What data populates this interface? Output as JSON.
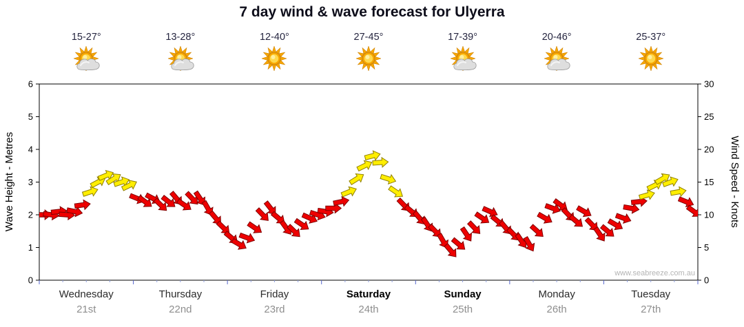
{
  "title": "7 day wind & wave forecast for Ulyerra",
  "watermark": "www.seabreeze.com.au",
  "days": [
    {
      "label": "Wednesday",
      "date": "21st",
      "temp": "15-27°",
      "icon": "sun-cloud",
      "bold": false
    },
    {
      "label": "Thursday",
      "date": "22nd",
      "temp": "13-28°",
      "icon": "sun-cloud",
      "bold": false
    },
    {
      "label": "Friday",
      "date": "23rd",
      "temp": "12-40°",
      "icon": "sun",
      "bold": false
    },
    {
      "label": "Saturday",
      "date": "24th",
      "temp": "27-45°",
      "icon": "sun",
      "bold": true
    },
    {
      "label": "Sunday",
      "date": "25th",
      "temp": "17-39°",
      "icon": "sun-cloud",
      "bold": true
    },
    {
      "label": "Monday",
      "date": "26th",
      "temp": "20-46°",
      "icon": "sun-cloud",
      "bold": false
    },
    {
      "label": "Tuesday",
      "date": "27th",
      "temp": "25-37°",
      "icon": "sun",
      "bold": false
    }
  ],
  "chart_data": {
    "type": "scatter",
    "title": "7 day wind & wave forecast for Ulyerra",
    "description": "Wind strength/direction arrows plotted against knots; arrow color indicates strength band",
    "x_axis": {
      "unit": "days",
      "categories": [
        "Wednesday",
        "Thursday",
        "Friday",
        "Saturday",
        "Sunday",
        "Monday",
        "Tuesday"
      ],
      "points_per_day": 12
    },
    "y_left": {
      "label": "Wave Height - Metres",
      "range": [
        0,
        6
      ],
      "ticks": [
        0,
        1,
        2,
        3,
        4,
        5,
        6
      ]
    },
    "y_right": {
      "label": "Wind Speed - Knots",
      "range": [
        0,
        30
      ],
      "ticks": [
        0,
        5,
        10,
        15,
        20,
        25,
        30
      ]
    },
    "color_rule": {
      "yellow_min_kn": 13,
      "red": "#ee0000",
      "yellow": "#ffee00",
      "red_stroke": "#7f0000",
      "yellow_stroke": "#8f7f00"
    },
    "series": [
      {
        "name": "Wind speed & direction",
        "speeds_kn": [
          10,
          10,
          10.5,
          10,
          10.5,
          11.5,
          13.5,
          15,
          16,
          15.5,
          15,
          14.5,
          12.5,
          12,
          12.5,
          11.5,
          12,
          12.5,
          11.5,
          12.5,
          12.5,
          11,
          9.5,
          8,
          6.5,
          5.5,
          6.5,
          8,
          10,
          11,
          9.5,
          8,
          7.5,
          8.5,
          9.5,
          10,
          10.5,
          11,
          12,
          13.5,
          15.5,
          17.5,
          19,
          18,
          15.5,
          13.5,
          11.5,
          10.5,
          9.5,
          8.5,
          7.5,
          6,
          4.5,
          5.5,
          7,
          8,
          9.5,
          10.5,
          9,
          8,
          7,
          6,
          5.5,
          7.5,
          9.5,
          11,
          11.5,
          10,
          9,
          10.5,
          8.5,
          7,
          7.5,
          8.5,
          9.5,
          11,
          12,
          13,
          14.5,
          15.5,
          15,
          13.5,
          12,
          10.5
        ],
        "dirs_deg": [
          0,
          8,
          -6,
          4,
          12,
          -8,
          -18,
          -28,
          -22,
          -32,
          -18,
          -26,
          22,
          36,
          28,
          44,
          38,
          50,
          34,
          46,
          56,
          60,
          50,
          44,
          40,
          30,
          20,
          34,
          46,
          52,
          40,
          54,
          44,
          34,
          24,
          18,
          8,
          0,
          -12,
          -22,
          -32,
          -26,
          -14,
          -4,
          18,
          34,
          46,
          40,
          50,
          56,
          46,
          60,
          50,
          40,
          56,
          46,
          34,
          24,
          40,
          50,
          46,
          56,
          60,
          42,
          30,
          20,
          36,
          46,
          40,
          30,
          46,
          56,
          40,
          30,
          20,
          10,
          -6,
          -16,
          -26,
          -30,
          -20,
          -10,
          22,
          36
        ]
      }
    ]
  }
}
